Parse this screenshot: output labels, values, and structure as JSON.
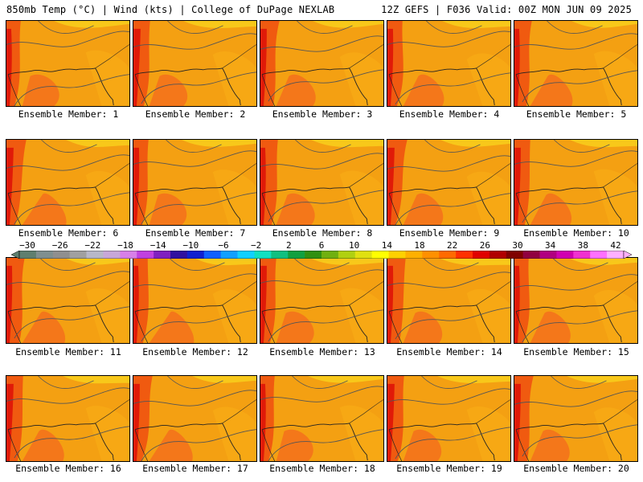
{
  "header": {
    "left_title": "850mb Temp (°C) | Wind (kts) | College of DuPage NEXLAB",
    "right_title": "12Z GEFS | F036 Valid: 00Z MON JUN 09 2025"
  },
  "colorbar": {
    "tick_labels": [
      "−30",
      "−26",
      "−22",
      "−18",
      "−14",
      "−10",
      "−6",
      "−2",
      "2",
      "6",
      "10",
      "14",
      "18",
      "22",
      "26",
      "30",
      "34",
      "38",
      "42"
    ],
    "colors": [
      "#5f7f6f",
      "#7f8f8f",
      "#8f8f8f",
      "#a0a0a0",
      "#b7b7c7",
      "#c7a7d7",
      "#d77fe7",
      "#c040e0",
      "#8020c0",
      "#3010a0",
      "#1020d0",
      "#1060ff",
      "#10a0ff",
      "#10d0ff",
      "#10e0c0",
      "#10c080",
      "#10a040",
      "#309010",
      "#70b010",
      "#b0d010",
      "#e0e010",
      "#ffff00",
      "#ffd000",
      "#ffb000",
      "#ff9000",
      "#ff6a00",
      "#ff3000",
      "#e00000",
      "#b00000",
      "#800000",
      "#900040",
      "#b00080",
      "#d000b0",
      "#f030d0",
      "#ff70ff",
      "#ffb0ff"
    ]
  },
  "members": [
    {
      "label": "Ensemble Member: 1"
    },
    {
      "label": "Ensemble Member: 2"
    },
    {
      "label": "Ensemble Member: 3"
    },
    {
      "label": "Ensemble Member: 4"
    },
    {
      "label": "Ensemble Member: 5"
    },
    {
      "label": "Ensemble Member: 6"
    },
    {
      "label": "Ensemble Member: 7"
    },
    {
      "label": "Ensemble Member: 8"
    },
    {
      "label": "Ensemble Member: 9"
    },
    {
      "label": "Ensemble Member: 10"
    },
    {
      "label": "Ensemble Member: 11"
    },
    {
      "label": "Ensemble Member: 12"
    },
    {
      "label": "Ensemble Member: 13"
    },
    {
      "label": "Ensemble Member: 14"
    },
    {
      "label": "Ensemble Member: 15"
    },
    {
      "label": "Ensemble Member: 16"
    },
    {
      "label": "Ensemble Member: 17"
    },
    {
      "label": "Ensemble Member: 18"
    },
    {
      "label": "Ensemble Member: 19"
    },
    {
      "label": "Ensemble Member: 20"
    }
  ]
}
